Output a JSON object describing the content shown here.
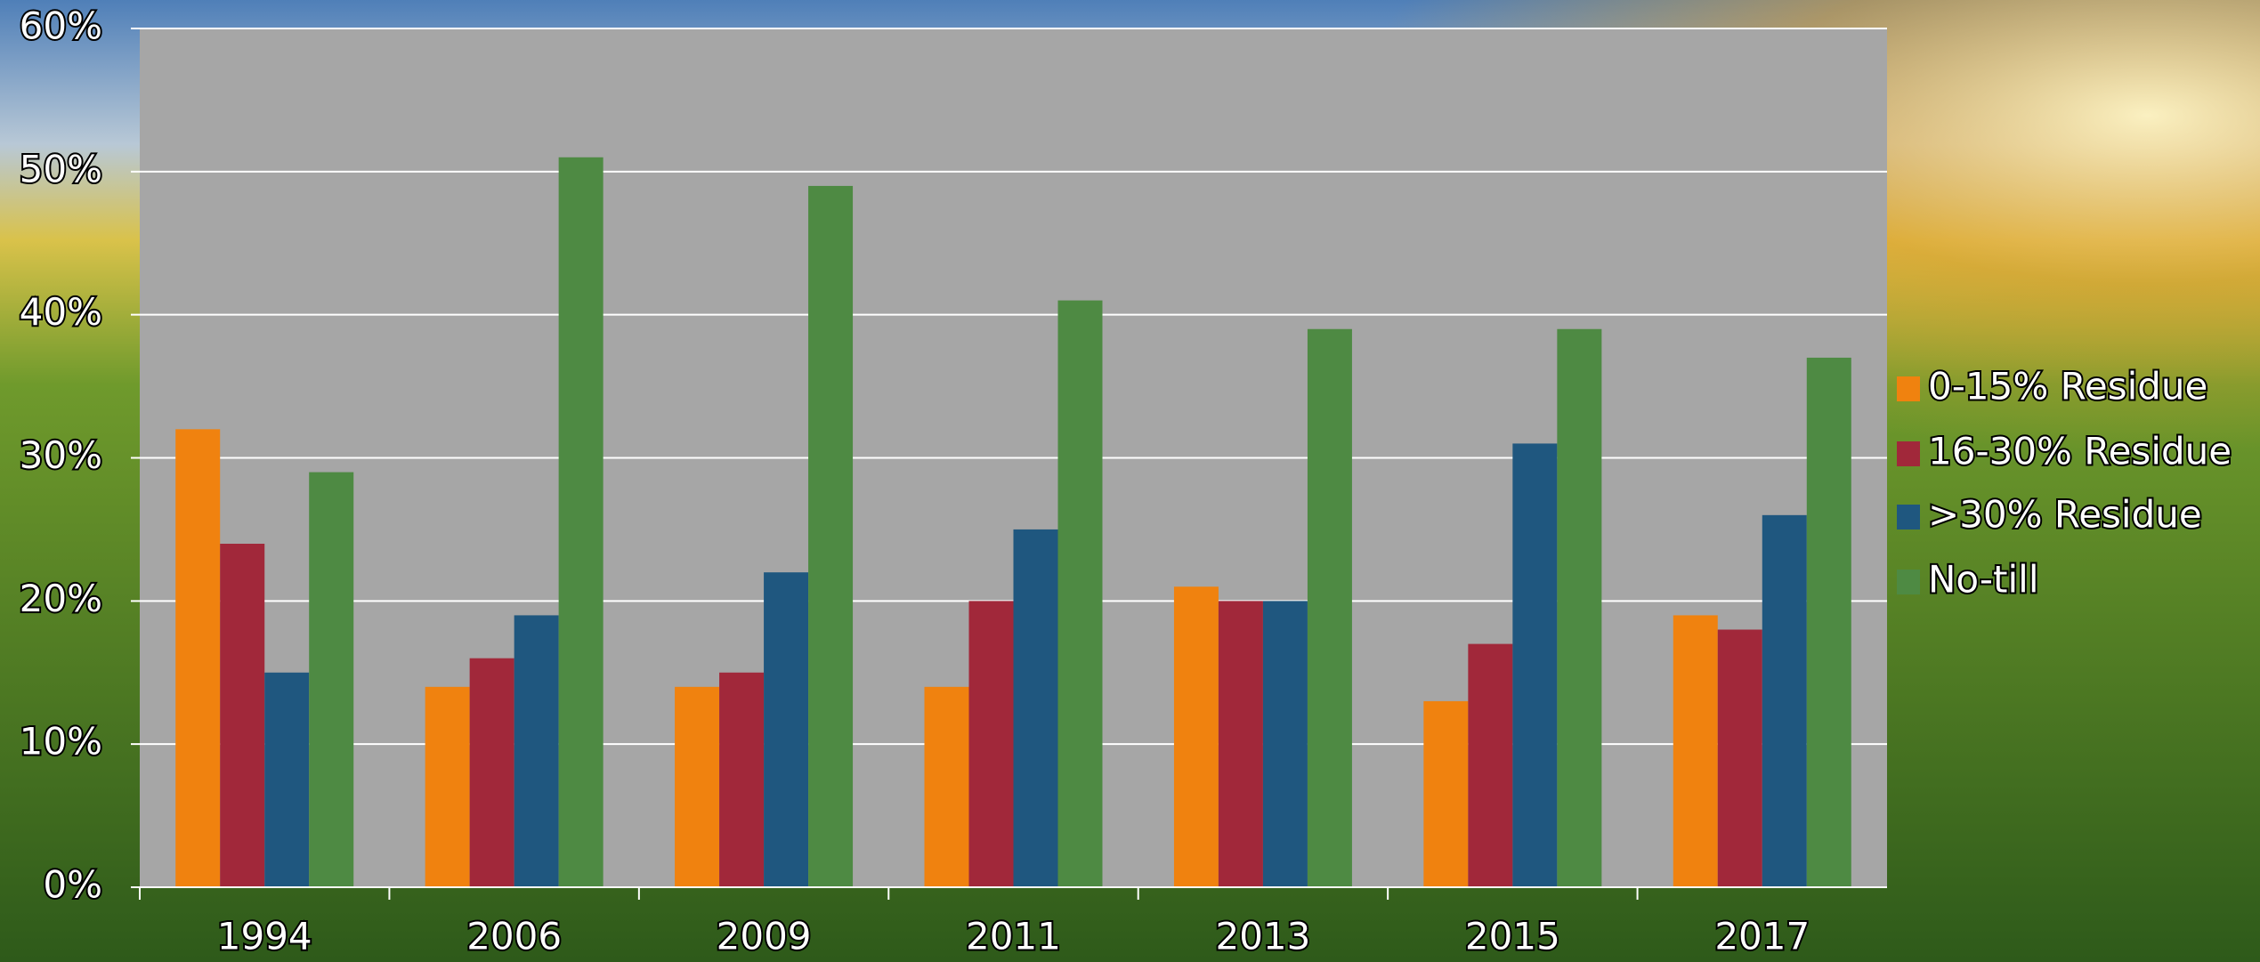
{
  "chart_data": {
    "type": "bar",
    "categories": [
      "1994",
      "2006",
      "2009",
      "2011",
      "2013",
      "2015",
      "2017"
    ],
    "series": [
      {
        "name": "0-15% Residue",
        "color": "#f0820f",
        "values": [
          32,
          14,
          14,
          14,
          21,
          13,
          19
        ]
      },
      {
        "name": "16-30% Residue",
        "color": "#a1283a",
        "values": [
          24,
          16,
          15,
          20,
          20,
          17,
          18
        ]
      },
      {
        "name": ">30% Residue",
        "color": "#1f577f",
        "values": [
          15,
          19,
          22,
          25,
          20,
          31,
          26
        ]
      },
      {
        "name": "No-till",
        "color": "#4e8a43",
        "values": [
          29,
          51,
          49,
          41,
          39,
          39,
          37
        ]
      }
    ],
    "ylim": [
      0,
      60
    ],
    "yticks": [
      {
        "value": 0,
        "label": "0%"
      },
      {
        "value": 10,
        "label": "10%"
      },
      {
        "value": 20,
        "label": "20%"
      },
      {
        "value": 30,
        "label": "30%"
      },
      {
        "value": 40,
        "label": "40%"
      },
      {
        "value": 50,
        "label": "50%"
      },
      {
        "value": 60,
        "label": "60%"
      }
    ],
    "grid": true,
    "legend": "right"
  }
}
